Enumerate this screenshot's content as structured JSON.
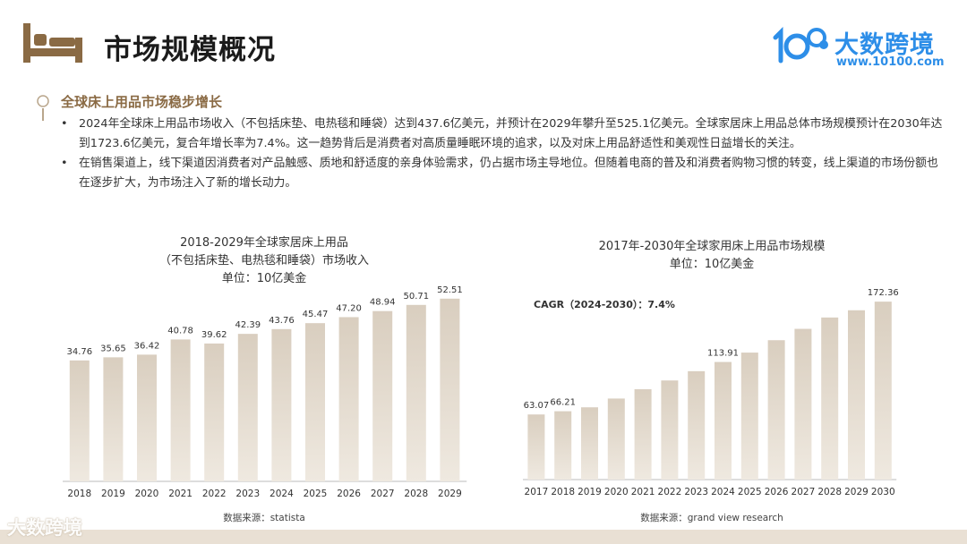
{
  "header": {
    "title": "市场规模概况",
    "icon": "bed-icon",
    "logo": {
      "name": "大数跨境",
      "url": "www.10100.com",
      "color": "#2d8ee8"
    }
  },
  "section": {
    "title": "全球床上用品市场稳步增长",
    "bullets": [
      "2024年全球床上用品市场收入（不包括床垫、电热毯和睡袋）达到437.6亿美元，并预计在2029年攀升至525.1亿美元。全球家居床上用品总体市场规模预计在2030年达到1723.6亿美元，复合年增长率为7.4%。这一趋势背后是消费者对高质量睡眠环境的追求，以及对床上用品舒适性和美观性日益增长的关注。",
      "在销售渠道上，线下渠道因消费者对产品触感、质地和舒适度的亲身体验需求，仍占据市场主导地位。但随着电商的普及和消费者购物习惯的转变，线上渠道的市场份额也在逐步扩大，为市场注入了新的增长动力。"
    ]
  },
  "charts": {
    "left": {
      "title_lines": [
        "2018-2029年全球家居床上用品",
        "（不包括床垫、电热毯和睡袋）市场收入",
        "单位：10亿美金"
      ],
      "source": "数据来源：statista"
    },
    "right": {
      "title_lines": [
        "2017年-2030年全球家用床上用品市场规模",
        "单位：10亿美金"
      ],
      "cagr": "CAGR（2024-2030）：7.4%",
      "source": "数据来源：grand view research"
    }
  },
  "colors": {
    "accent": "#8a6a44",
    "bar_top": "#d9cebf",
    "bar_bottom": "#efe9e0"
  },
  "footer": {
    "logo": "大数跨境"
  },
  "chart_data": [
    {
      "type": "bar",
      "title": "2018-2029年全球家居床上用品（不包括床垫、电热毯和睡袋）市场收入",
      "ylabel": "单位：10亿美金",
      "categories": [
        "2018",
        "2019",
        "2020",
        "2021",
        "2022",
        "2023",
        "2024",
        "2025",
        "2026",
        "2027",
        "2028",
        "2029"
      ],
      "values": [
        34.76,
        35.65,
        36.42,
        40.78,
        39.62,
        42.39,
        43.76,
        45.47,
        47.2,
        48.94,
        50.71,
        52.51
      ],
      "labels": [
        "34.76",
        "35.65",
        "36.42",
        "40.78",
        "39.62",
        "42.39",
        "43.76",
        "45.47",
        "47.20",
        "48.94",
        "50.71",
        "52.51"
      ],
      "ylim": [
        0,
        54
      ],
      "grid": false
    },
    {
      "type": "bar",
      "title": "2017年-2030年全球家用床上用品市场规模",
      "ylabel": "单位：10亿美金",
      "categories": [
        "2017",
        "2018",
        "2019",
        "2020",
        "2021",
        "2022",
        "2023",
        "2024",
        "2025",
        "2026",
        "2027",
        "2028",
        "2029",
        "2030"
      ],
      "values": [
        63.07,
        66.21,
        70.0,
        78.5,
        87.5,
        96.0,
        105.0,
        113.91,
        123.0,
        135.0,
        146.0,
        157.0,
        164.0,
        172.36
      ],
      "labels": [
        "63.07",
        "66.21",
        "",
        "",
        "",
        "",
        "",
        "113.91",
        "",
        "",
        "",
        "",
        "",
        "172.36"
      ],
      "annotation": "CAGR（2024-2030）：7.4%",
      "ylim": [
        0,
        182
      ],
      "grid": false
    }
  ]
}
